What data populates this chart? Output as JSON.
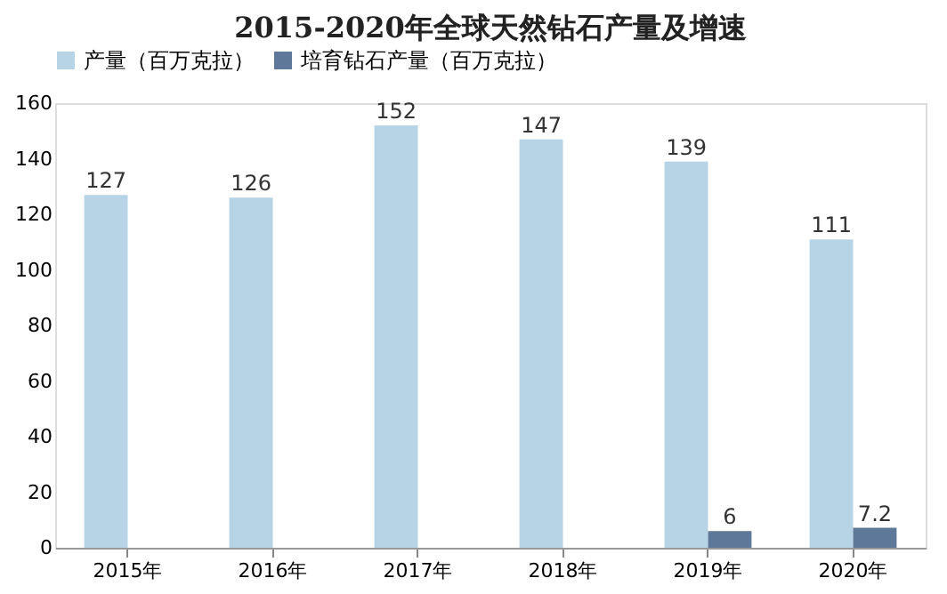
{
  "chart_data": {
    "type": "bar",
    "title": "2015-2020年全球天然钻石产量及增速",
    "categories": [
      "2015年",
      "2016年",
      "2017年",
      "2018年",
      "2019年",
      "2020年"
    ],
    "series": [
      {
        "name": "产量（百万克拉）",
        "color": "#b7d4e6",
        "values": [
          127,
          126,
          152,
          147,
          139,
          111
        ]
      },
      {
        "name": "培育钻石产量（百万克拉）",
        "color": "#5d7898",
        "values": [
          null,
          null,
          null,
          null,
          6,
          7.2
        ]
      }
    ],
    "ylim": [
      0,
      160
    ],
    "yticks": [
      0,
      20,
      40,
      60,
      80,
      100,
      120,
      140,
      160
    ],
    "data_labels": true,
    "grid": false,
    "legend": "top"
  }
}
